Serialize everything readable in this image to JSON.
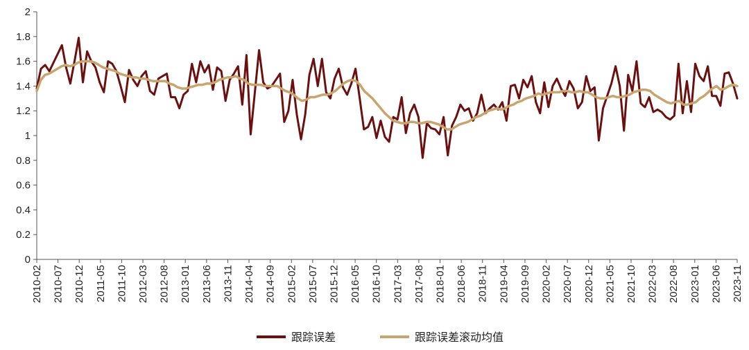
{
  "chart_data": {
    "type": "line",
    "title": "",
    "xlabel": "",
    "ylabel": "",
    "ylim": [
      0,
      2
    ],
    "y_ticks": [
      "0",
      "0.2",
      "0.4",
      "0.6",
      "0.8",
      "1",
      "1.2",
      "1.4",
      "1.6",
      "1.8",
      "2"
    ],
    "x_tick_labels": [
      "2010-02",
      "2010-07",
      "2010-12",
      "2011-05",
      "2011-10",
      "2012-03",
      "2012-08",
      "2013-01",
      "2013-06",
      "2013-11",
      "2014-04",
      "2014-09",
      "2015-02",
      "2015-07",
      "2015-12",
      "2016-05",
      "2016-10",
      "2017-03",
      "2017-08",
      "2018-01",
      "2018-06",
      "2018-11",
      "2019-04",
      "2019-09",
      "2020-02",
      "2020-07",
      "2020-12",
      "2021-05",
      "2021-10",
      "2022-03",
      "2022-08",
      "2023-01",
      "2023-06",
      "2023-11"
    ],
    "x_start": "2010-02",
    "x_end": "2023-11",
    "grid": false,
    "legend_position": "bottom",
    "series": [
      {
        "name": "跟踪误差",
        "color": "#6b0f0f",
        "values": [
          1.38,
          1.54,
          1.57,
          1.52,
          1.59,
          1.66,
          1.73,
          1.55,
          1.42,
          1.6,
          1.79,
          1.43,
          1.68,
          1.6,
          1.55,
          1.43,
          1.35,
          1.6,
          1.58,
          1.52,
          1.4,
          1.27,
          1.53,
          1.45,
          1.4,
          1.48,
          1.52,
          1.36,
          1.33,
          1.46,
          1.48,
          1.5,
          1.31,
          1.31,
          1.22,
          1.33,
          1.36,
          1.58,
          1.43,
          1.6,
          1.51,
          1.57,
          1.37,
          1.55,
          1.52,
          1.28,
          1.45,
          1.5,
          1.56,
          1.25,
          1.65,
          1.01,
          1.35,
          1.69,
          1.43,
          1.38,
          1.4,
          1.45,
          1.5,
          1.11,
          1.2,
          1.45,
          1.17,
          0.97,
          1.17,
          1.49,
          1.62,
          1.4,
          1.62,
          1.35,
          1.3,
          1.46,
          1.54,
          1.39,
          1.33,
          1.42,
          1.54,
          1.3,
          1.05,
          1.07,
          1.15,
          0.98,
          1.12,
          0.99,
          0.95,
          1.15,
          1.13,
          1.31,
          1.02,
          1.18,
          1.25,
          1.15,
          0.82,
          1.1,
          1.06,
          1.05,
          1.01,
          1.15,
          0.84,
          1.08,
          1.15,
          1.25,
          1.2,
          1.22,
          1.12,
          1.18,
          1.33,
          1.18,
          1.22,
          1.25,
          1.21,
          1.27,
          1.12,
          1.4,
          1.41,
          1.3,
          1.45,
          1.39,
          1.48,
          1.27,
          1.18,
          1.43,
          1.23,
          1.4,
          1.46,
          1.38,
          1.32,
          1.44,
          1.38,
          1.22,
          1.27,
          1.48,
          1.36,
          1.39,
          0.96,
          1.22,
          1.32,
          1.42,
          1.56,
          1.4,
          1.04,
          1.49,
          1.36,
          1.6,
          1.26,
          1.23,
          1.31,
          1.19,
          1.21,
          1.19,
          1.15,
          1.13,
          1.16,
          1.58,
          1.18,
          1.44,
          1.19,
          1.58,
          1.48,
          1.44,
          1.56,
          1.32,
          1.32,
          1.24,
          1.5,
          1.51,
          1.42,
          1.3
        ]
      },
      {
        "name": "跟踪误差滚动均值",
        "color": "#c8a46e",
        "values": [
          1.36,
          1.45,
          1.49,
          1.5,
          1.52,
          1.54,
          1.56,
          1.57,
          1.56,
          1.57,
          1.59,
          1.6,
          1.6,
          1.6,
          1.59,
          1.57,
          1.55,
          1.54,
          1.53,
          1.52,
          1.5,
          1.49,
          1.48,
          1.47,
          1.47,
          1.46,
          1.46,
          1.45,
          1.44,
          1.44,
          1.44,
          1.44,
          1.42,
          1.41,
          1.39,
          1.38,
          1.38,
          1.39,
          1.4,
          1.41,
          1.41,
          1.42,
          1.42,
          1.43,
          1.45,
          1.46,
          1.47,
          1.47,
          1.48,
          1.46,
          1.45,
          1.42,
          1.41,
          1.41,
          1.41,
          1.4,
          1.4,
          1.4,
          1.4,
          1.38,
          1.36,
          1.35,
          1.33,
          1.3,
          1.28,
          1.29,
          1.31,
          1.31,
          1.32,
          1.33,
          1.33,
          1.34,
          1.36,
          1.39,
          1.42,
          1.44,
          1.45,
          1.44,
          1.41,
          1.36,
          1.33,
          1.3,
          1.26,
          1.22,
          1.18,
          1.15,
          1.12,
          1.11,
          1.1,
          1.1,
          1.11,
          1.11,
          1.1,
          1.1,
          1.11,
          1.11,
          1.1,
          1.09,
          1.07,
          1.05,
          1.05,
          1.07,
          1.09,
          1.1,
          1.11,
          1.13,
          1.15,
          1.16,
          1.18,
          1.2,
          1.21,
          1.22,
          1.21,
          1.22,
          1.24,
          1.25,
          1.27,
          1.28,
          1.3,
          1.31,
          1.32,
          1.34,
          1.33,
          1.34,
          1.35,
          1.35,
          1.35,
          1.36,
          1.36,
          1.35,
          1.35,
          1.36,
          1.35,
          1.35,
          1.33,
          1.31,
          1.3,
          1.3,
          1.31,
          1.32,
          1.31,
          1.31,
          1.32,
          1.33,
          1.35,
          1.36,
          1.37,
          1.37,
          1.36,
          1.33,
          1.31,
          1.29,
          1.27,
          1.26,
          1.27,
          1.28,
          1.25,
          1.25,
          1.26,
          1.27,
          1.3,
          1.32,
          1.35,
          1.38,
          1.4,
          1.37,
          1.38,
          1.4,
          1.41,
          1.4
        ]
      }
    ]
  }
}
